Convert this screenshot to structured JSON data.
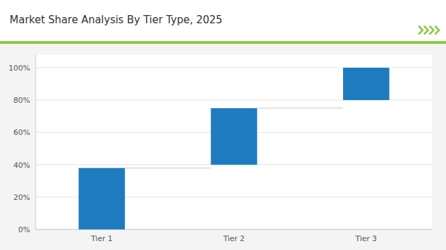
{
  "chart_data": {
    "type": "bar",
    "title": "Market Share Analysis By Tier Type, 2025",
    "categories": [
      "Tier 1",
      "Tier 2",
      "Tier 3"
    ],
    "values": [
      38,
      35,
      20
    ],
    "bottoms": [
      0,
      40,
      80
    ],
    "connector_values": [
      38,
      75
    ],
    "color": "#1F7BBF",
    "ylim": [
      0,
      108
    ],
    "yticks": [
      {
        "value": 0,
        "label": "0%"
      },
      {
        "value": 20,
        "label": "20%"
      },
      {
        "value": 40,
        "label": "40%"
      },
      {
        "value": 60,
        "label": "60%"
      },
      {
        "value": 80,
        "label": "80%"
      },
      {
        "value": 100,
        "label": "100%"
      }
    ],
    "grid": true
  }
}
